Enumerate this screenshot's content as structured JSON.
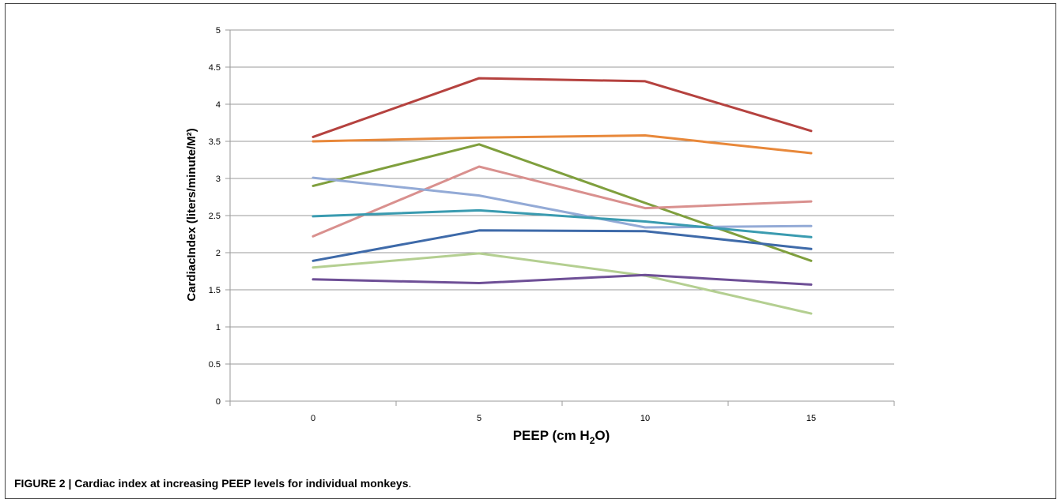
{
  "caption": {
    "label": "FIGURE 2 | Cardiac index at increasing PEEP levels for individual monkeys",
    "period": "."
  },
  "chart_data": {
    "type": "line",
    "title": "",
    "xlabel_main": "PEEP (cm H",
    "xlabel_sub": "2",
    "xlabel_tail": "O)",
    "ylabel": "CardiacIndex (liters/minute/M²)",
    "categories": [
      "0",
      "5",
      "10",
      "15"
    ],
    "ylim": [
      0,
      5
    ],
    "yticks": [
      "0",
      "0.5",
      "1",
      "1.5",
      "2",
      "2.5",
      "3",
      "3.5",
      "4",
      "4.5",
      "5"
    ],
    "grid": true,
    "legend": "none",
    "series": [
      {
        "color": "#b5423f",
        "values": [
          3.56,
          4.35,
          4.31,
          3.64
        ]
      },
      {
        "color": "#e8883a",
        "values": [
          3.5,
          3.55,
          3.58,
          3.34
        ]
      },
      {
        "color": "#7f9f3d",
        "values": [
          2.9,
          3.46,
          2.67,
          1.89
        ]
      },
      {
        "color": "#d9908e",
        "values": [
          2.22,
          3.16,
          2.6,
          2.69
        ]
      },
      {
        "color": "#93aad6",
        "values": [
          3.01,
          2.77,
          2.34,
          2.36
        ]
      },
      {
        "color": "#3a9bb0",
        "values": [
          2.49,
          2.57,
          2.42,
          2.21
        ]
      },
      {
        "color": "#3e6aa9",
        "values": [
          1.89,
          2.3,
          2.29,
          2.05
        ]
      },
      {
        "color": "#b4cf91",
        "values": [
          1.8,
          1.99,
          1.69,
          1.18
        ]
      },
      {
        "color": "#6e4f96",
        "values": [
          1.64,
          1.59,
          1.7,
          1.57
        ]
      }
    ]
  }
}
